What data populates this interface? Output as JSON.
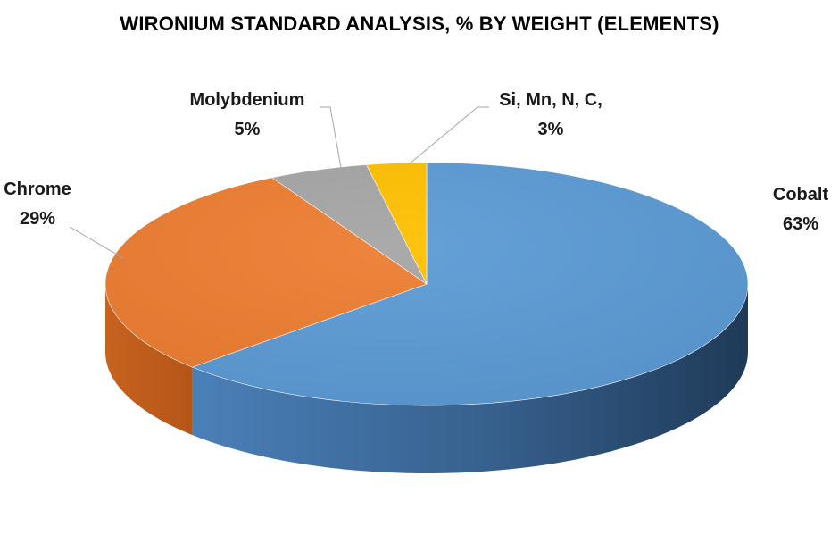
{
  "chart_data": {
    "type": "pie",
    "style": "3d",
    "title": "WIRONIUM STANDARD ANALYSIS, % BY WEIGHT (ELEMENTS)",
    "categories": [
      "Cobalt",
      "Chrome",
      "Molybdenium",
      "Si, Mn, N, C,"
    ],
    "values": [
      63,
      29,
      5,
      3
    ],
    "value_labels": [
      "63%",
      "29%",
      "5%",
      "3%"
    ],
    "colors": [
      "#5b9bd5",
      "#ed7d31",
      "#a5a5a5",
      "#ffc000"
    ],
    "legend": "none",
    "data_labels": "outside with leader lines"
  }
}
